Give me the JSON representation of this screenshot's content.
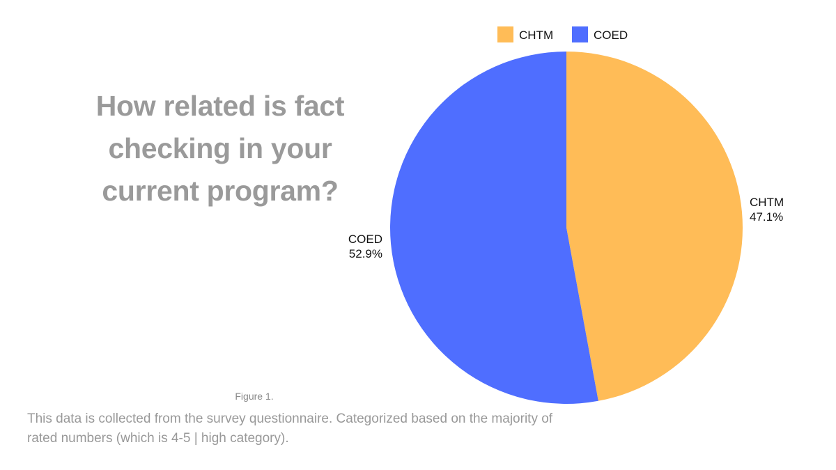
{
  "title_lines": [
    "How related is fact",
    "checking in your",
    "current program?"
  ],
  "figure_label": "Figure 1.",
  "caption": "This data is collected from the survey questionnaire. Categorized based on the majority of rated numbers (which is 4-5 | high category).",
  "chart_data": {
    "type": "pie",
    "legend_position": "top",
    "slices": [
      {
        "label": "CHTM",
        "value": 47.1,
        "value_label": "47.1%",
        "color": "#FFBC57"
      },
      {
        "label": "COED",
        "value": 52.9,
        "value_label": "52.9%",
        "color": "#4F6EFF"
      }
    ]
  }
}
